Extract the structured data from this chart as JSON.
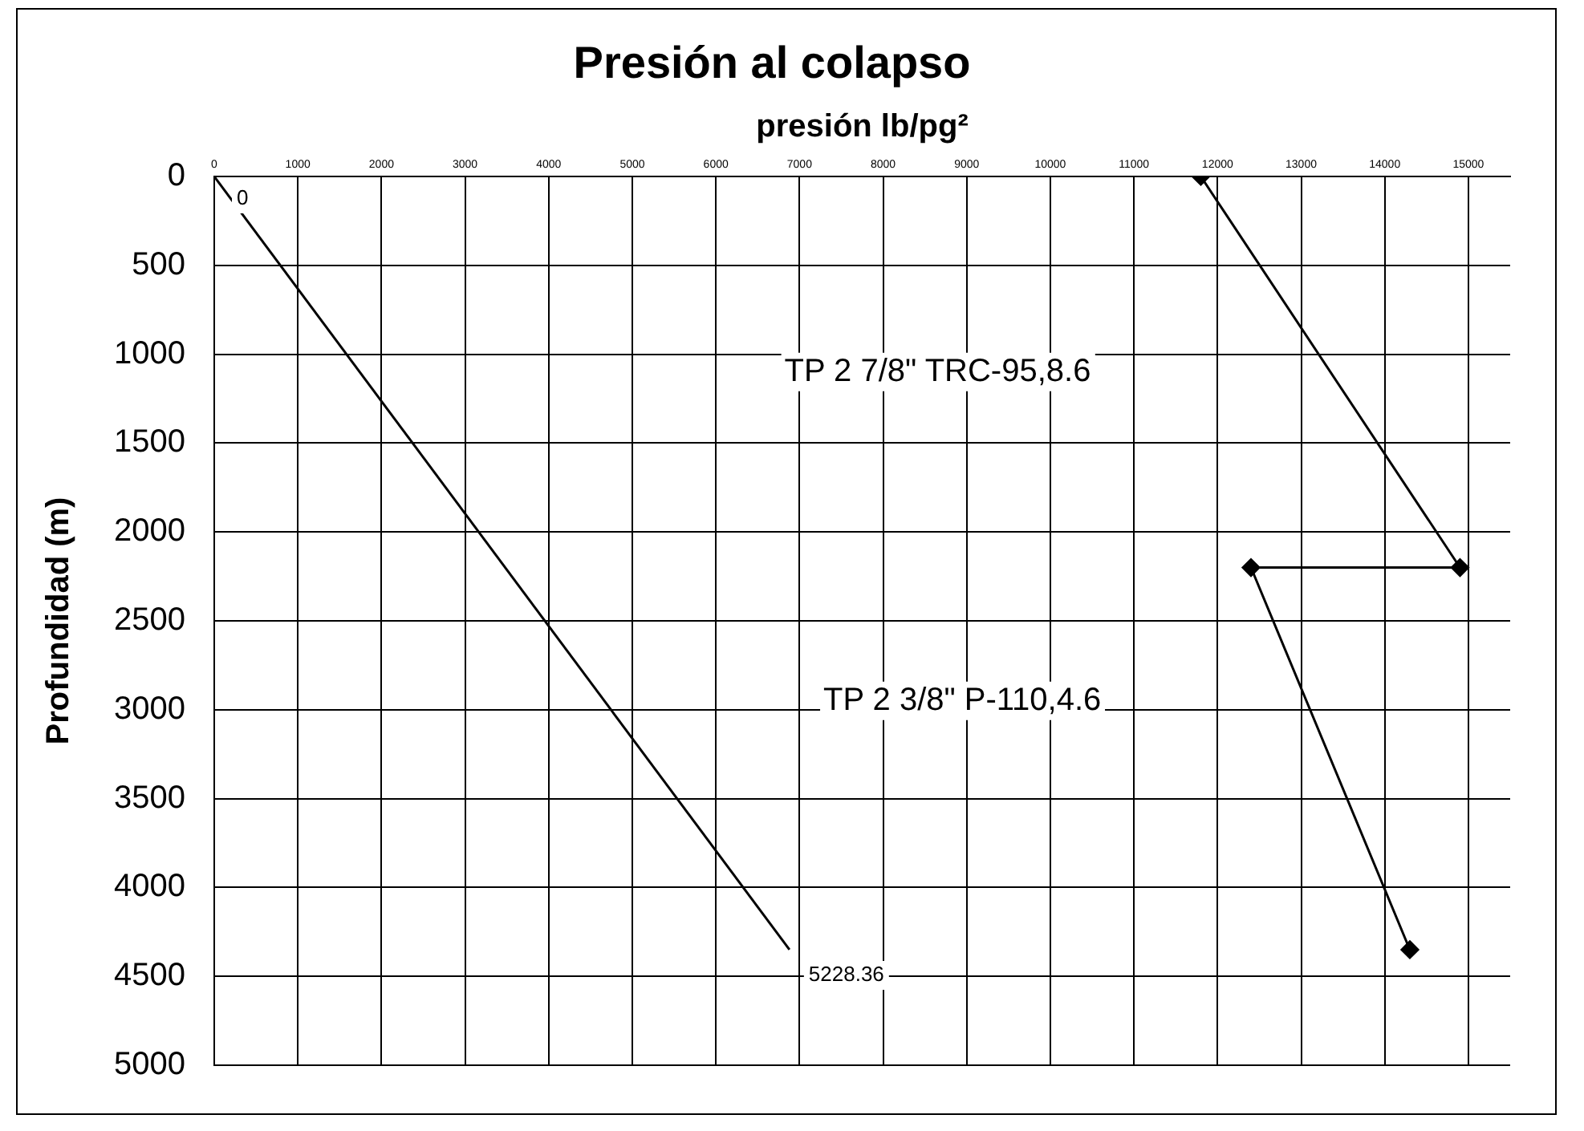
{
  "chart_data": {
    "type": "line",
    "title": "Presión al colapso",
    "xlabel": "presión lb/pg²",
    "ylabel": "Profundidad (m)",
    "series": [
      {
        "color": "#000000",
        "marker": "none",
        "x": [
          0,
          6880
        ],
        "values": [
          0,
          4350
        ]
      },
      {
        "color": "#000000",
        "marker": "diamond",
        "x": [
          11800,
          14900,
          12400,
          14300
        ],
        "values": [
          0,
          2200,
          2200,
          4350
        ]
      }
    ],
    "xlim": [
      0,
      15500
    ],
    "xticks": [
      0,
      1000,
      2000,
      3000,
      4000,
      5000,
      6000,
      7000,
      8000,
      9000,
      10000,
      11000,
      12000,
      13000,
      14000,
      15000
    ],
    "ylim": [
      5000,
      0
    ],
    "yticks": [
      0,
      500,
      1000,
      1500,
      2000,
      2500,
      3000,
      3500,
      4000,
      4500,
      5000
    ],
    "grid": true,
    "legend": false,
    "annotations": [
      {
        "text": "0",
        "x": 0,
        "y": 0
      },
      {
        "text": "5228.36",
        "x": 6880,
        "y": 4350
      },
      "TP 2 7/8\" TRC-95,8.6",
      "TP 2 3/8\" P-110,4.6"
    ]
  }
}
